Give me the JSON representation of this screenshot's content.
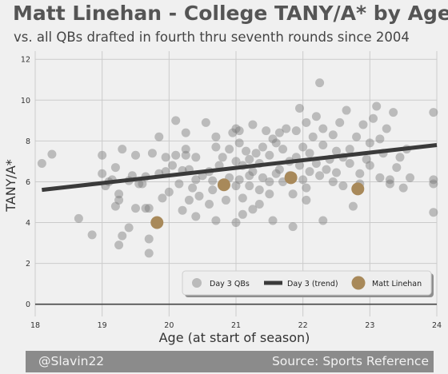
{
  "header": {
    "title": "Matt Linehan - College TANY/A* by Age",
    "subtitle": "vs. all QBs drafted in fourth thru seventh rounds since 2004"
  },
  "footer": {
    "credit": "@Slavin22",
    "source": "Source: Sports Reference"
  },
  "colors": {
    "background": "#f0f0f0",
    "grid": "#cbcbcb",
    "scatter": "#7a7a7a",
    "trend": "#3a3a3a",
    "highlight": "#a8895a",
    "footer": "#8b8b8b"
  },
  "chart_data": {
    "type": "scatter",
    "xlabel": "Age (at start of season)",
    "ylabel": "TANY/A*",
    "xlim": [
      18,
      24
    ],
    "ylim": [
      -0.6,
      12.4
    ],
    "x_ticks": [
      "18",
      "19",
      "20",
      "21",
      "22",
      "23",
      "24"
    ],
    "y_ticks": [
      "0",
      "2",
      "4",
      "6",
      "8",
      "10",
      "12"
    ],
    "grid": true,
    "legend_position": "bottom-right",
    "series": [
      {
        "name": "Day 3 QBs",
        "kind": "points",
        "points": [
          [
            18.1,
            6.9
          ],
          [
            18.25,
            7.35
          ],
          [
            18.65,
            4.2
          ],
          [
            18.85,
            3.4
          ],
          [
            19.0,
            6.4
          ],
          [
            19.0,
            7.3
          ],
          [
            19.05,
            5.8
          ],
          [
            19.1,
            6.0
          ],
          [
            19.15,
            6.1
          ],
          [
            19.2,
            6.7
          ],
          [
            19.2,
            4.8
          ],
          [
            19.25,
            5.1
          ],
          [
            19.25,
            5.4
          ],
          [
            19.25,
            2.9
          ],
          [
            19.3,
            3.35
          ],
          [
            19.3,
            7.6
          ],
          [
            19.4,
            3.75
          ],
          [
            19.4,
            6.05
          ],
          [
            19.45,
            6.3
          ],
          [
            19.5,
            7.3
          ],
          [
            19.55,
            5.9
          ],
          [
            19.6,
            5.9
          ],
          [
            19.65,
            6.25
          ],
          [
            19.65,
            4.7
          ],
          [
            19.7,
            4.7
          ],
          [
            19.7,
            3.2
          ],
          [
            19.7,
            2.5
          ],
          [
            19.75,
            7.4
          ],
          [
            19.85,
            6.4
          ],
          [
            19.85,
            8.2
          ],
          [
            19.9,
            5.2
          ],
          [
            19.95,
            7.2
          ],
          [
            19.95,
            6.5
          ],
          [
            20.0,
            5.5
          ],
          [
            20.05,
            6.8
          ],
          [
            20.1,
            7.3
          ],
          [
            20.1,
            9.0
          ],
          [
            20.15,
            5.9
          ],
          [
            20.2,
            6.55
          ],
          [
            20.2,
            4.6
          ],
          [
            20.25,
            7.6
          ],
          [
            20.25,
            8.4
          ],
          [
            20.25,
            7.3
          ],
          [
            20.3,
            5.1
          ],
          [
            20.3,
            6.6
          ],
          [
            20.35,
            5.7
          ],
          [
            20.4,
            6.1
          ],
          [
            20.4,
            7.2
          ],
          [
            20.45,
            5.3
          ],
          [
            20.5,
            6.3
          ],
          [
            20.55,
            8.9
          ],
          [
            20.6,
            6.5
          ],
          [
            20.6,
            4.9
          ],
          [
            20.65,
            5.6
          ],
          [
            20.65,
            6.05
          ],
          [
            20.7,
            7.7
          ],
          [
            20.7,
            8.2
          ],
          [
            20.7,
            4.1
          ],
          [
            20.75,
            6.8
          ],
          [
            20.8,
            7.2
          ],
          [
            20.85,
            5.1
          ],
          [
            20.9,
            6.2
          ],
          [
            20.9,
            7.6
          ],
          [
            20.95,
            8.4
          ],
          [
            21.0,
            7.0
          ],
          [
            21.0,
            8.6
          ],
          [
            21.0,
            5.8
          ],
          [
            21.05,
            6.1
          ],
          [
            21.05,
            7.9
          ],
          [
            21.05,
            8.5
          ],
          [
            21.1,
            6.8
          ],
          [
            21.1,
            5.2
          ],
          [
            21.1,
            4.4
          ],
          [
            21.15,
            7.5
          ],
          [
            21.2,
            7.1
          ],
          [
            21.2,
            6.3
          ],
          [
            21.2,
            5.8
          ],
          [
            21.25,
            8.8
          ],
          [
            21.25,
            6.5
          ],
          [
            21.25,
            4.65
          ],
          [
            21.3,
            7.4
          ],
          [
            21.35,
            6.9
          ],
          [
            21.35,
            5.6
          ],
          [
            21.4,
            7.7
          ],
          [
            21.4,
            6.2
          ],
          [
            21.45,
            8.5
          ],
          [
            21.5,
            6.0
          ],
          [
            21.5,
            7.3
          ],
          [
            21.5,
            5.4
          ],
          [
            21.55,
            8.1
          ],
          [
            21.55,
            4.1
          ],
          [
            21.6,
            6.4
          ],
          [
            21.6,
            7.9
          ],
          [
            21.65,
            6.6
          ],
          [
            21.65,
            8.4
          ],
          [
            21.7,
            6.0
          ],
          [
            21.7,
            7.6
          ],
          [
            21.75,
            8.6
          ],
          [
            21.8,
            7.0
          ],
          [
            21.8,
            6.3
          ],
          [
            21.85,
            5.4
          ],
          [
            21.85,
            3.8
          ],
          [
            21.9,
            8.5
          ],
          [
            21.9,
            7.2
          ],
          [
            21.95,
            9.6
          ],
          [
            21.95,
            6.8
          ],
          [
            22.0,
            7.7
          ],
          [
            22.0,
            6.1
          ],
          [
            22.05,
            8.9
          ],
          [
            22.05,
            5.7
          ],
          [
            22.1,
            7.4
          ],
          [
            22.1,
            6.5
          ],
          [
            22.15,
            8.2
          ],
          [
            22.2,
            9.2
          ],
          [
            22.2,
            6.9
          ],
          [
            22.25,
            10.85
          ],
          [
            22.25,
            6.3
          ],
          [
            22.3,
            7.8
          ],
          [
            22.3,
            8.6
          ],
          [
            22.35,
            6.6
          ],
          [
            22.4,
            7.1
          ],
          [
            22.45,
            8.3
          ],
          [
            22.45,
            6.0
          ],
          [
            22.5,
            7.5
          ],
          [
            22.5,
            6.45
          ],
          [
            22.55,
            8.9
          ],
          [
            22.6,
            7.2
          ],
          [
            22.6,
            5.8
          ],
          [
            22.65,
            9.5
          ],
          [
            22.7,
            6.9
          ],
          [
            22.7,
            7.6
          ],
          [
            22.75,
            4.8
          ],
          [
            22.8,
            8.2
          ],
          [
            22.85,
            5.9
          ],
          [
            22.85,
            6.4
          ],
          [
            22.9,
            8.8
          ],
          [
            22.95,
            7.1
          ],
          [
            23.0,
            6.8
          ],
          [
            23.0,
            7.9
          ],
          [
            23.05,
            9.1
          ],
          [
            23.1,
            9.7
          ],
          [
            23.15,
            8.1
          ],
          [
            23.15,
            6.2
          ],
          [
            23.2,
            7.4
          ],
          [
            23.25,
            8.6
          ],
          [
            23.3,
            5.9
          ],
          [
            23.3,
            6.1
          ],
          [
            23.35,
            9.4
          ],
          [
            23.4,
            6.7
          ],
          [
            23.45,
            7.2
          ],
          [
            23.5,
            5.7
          ],
          [
            23.55,
            7.6
          ],
          [
            23.6,
            6.2
          ],
          [
            23.95,
            9.4
          ],
          [
            23.95,
            6.1
          ],
          [
            23.95,
            4.5
          ],
          [
            23.95,
            5.9
          ],
          [
            22.3,
            4.1
          ],
          [
            22.05,
            5.1
          ],
          [
            21.35,
            4.9
          ],
          [
            20.4,
            4.3
          ],
          [
            19.5,
            4.7
          ],
          [
            21.0,
            4.0
          ]
        ]
      },
      {
        "name": "Day 3 (trend)",
        "kind": "line",
        "points": [
          [
            18.1,
            5.6
          ],
          [
            24.0,
            7.8
          ]
        ]
      },
      {
        "name": "Matt Linehan",
        "kind": "highlight",
        "points": [
          [
            19.82,
            4.0
          ],
          [
            20.82,
            5.85
          ],
          [
            21.82,
            6.2
          ],
          [
            22.82,
            5.65
          ]
        ]
      }
    ]
  }
}
